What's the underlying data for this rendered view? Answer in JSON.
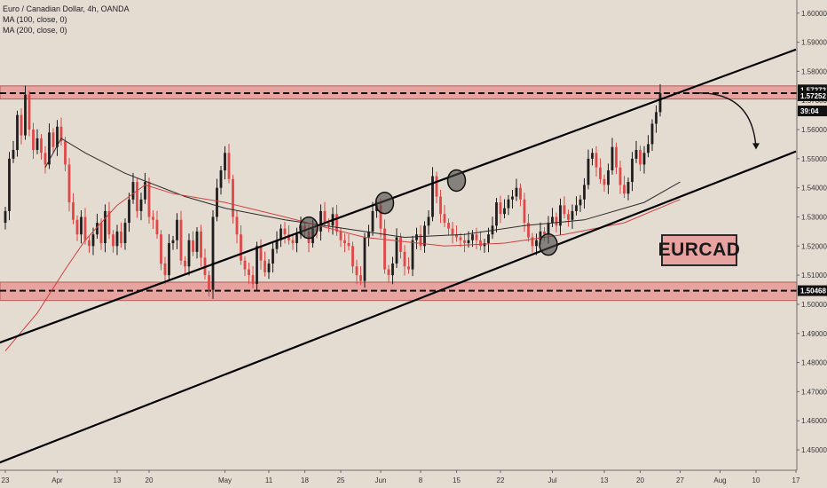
{
  "legend": {
    "title": "Euro / Canadian Dollar, 4h, OANDA",
    "ma100": "MA (100, close, 0)",
    "ma200": "MA (200, close, 0)"
  },
  "symbol_label": "EURCAD",
  "price_tags": [
    {
      "text": "1.57272",
      "value": 1.57272,
      "dark": true
    },
    {
      "text": "1.57252",
      "value": 1.57252,
      "dark": true
    },
    {
      "text": "39:04",
      "value": 1.5664,
      "dark": true
    },
    {
      "text": "1.50468",
      "value": 1.50468,
      "dark": true
    }
  ],
  "colors": {
    "background": "#e4dcd1",
    "bull_candle": "#1e1e1e",
    "bear_candle": "#e04848",
    "zone_fill": "#e6a3a0",
    "ma100": "#2a2a2a",
    "ma200": "#d04040"
  },
  "chart_data": {
    "type": "candlestick",
    "title": "Euro / Canadian Dollar, 4h, OANDA",
    "y_axis": {
      "range": [
        1.443,
        1.6045
      ],
      "ticks": [
        "1.45000",
        "1.46000",
        "1.47000",
        "1.48000",
        "1.49000",
        "1.50000",
        "1.51000",
        "1.52000",
        "1.53000",
        "1.54000",
        "1.55000",
        "1.56000",
        "1.57000",
        "1.58000",
        "1.59000",
        "1.60000"
      ]
    },
    "x_axis": {
      "ticks": [
        {
          "label": "23",
          "bar": 0
        },
        {
          "label": "Apr",
          "bar": 13
        },
        {
          "label": "13",
          "bar": 28
        },
        {
          "label": "20",
          "bar": 36
        },
        {
          "label": "May",
          "bar": 55
        },
        {
          "label": "11",
          "bar": 66
        },
        {
          "label": "18",
          "bar": 75
        },
        {
          "label": "25",
          "bar": 84
        },
        {
          "label": "Jun",
          "bar": 94
        },
        {
          "label": "8",
          "bar": 104
        },
        {
          "label": "15",
          "bar": 113
        },
        {
          "label": "22",
          "bar": 124
        },
        {
          "label": "Jul",
          "bar": 137
        },
        {
          "label": "13",
          "bar": 150
        },
        {
          "label": "20",
          "bar": 159
        },
        {
          "label": "27",
          "bar": 169
        },
        {
          "label": "Aug",
          "bar": 179
        },
        {
          "label": "10",
          "bar": 188
        },
        {
          "label": "17",
          "bar": 198
        }
      ]
    },
    "close_series": [
      1.532,
      1.55,
      1.553,
      1.565,
      1.558,
      1.572,
      1.56,
      1.553,
      1.557,
      1.552,
      1.548,
      1.559,
      1.554,
      1.561,
      1.556,
      1.548,
      1.535,
      1.529,
      1.524,
      1.53,
      1.522,
      1.52,
      1.524,
      1.528,
      1.521,
      1.532,
      1.524,
      1.52,
      1.525,
      1.521,
      1.528,
      1.536,
      1.542,
      1.532,
      1.536,
      1.542,
      1.53,
      1.529,
      1.524,
      1.514,
      1.51,
      1.521,
      1.522,
      1.529,
      1.515,
      1.513,
      1.522,
      1.518,
      1.525,
      1.516,
      1.51,
      1.505,
      1.53,
      1.54,
      1.546,
      1.552,
      1.543,
      1.53,
      1.524,
      1.515,
      1.512,
      1.51,
      1.507,
      1.52,
      1.515,
      1.511,
      1.514,
      1.519,
      1.522,
      1.526,
      1.524,
      1.522,
      1.521,
      1.524,
      1.527,
      1.525,
      1.521,
      1.526,
      1.525,
      1.532,
      1.528,
      1.527,
      1.531,
      1.525,
      1.522,
      1.521,
      1.52,
      1.513,
      1.51,
      1.508,
      1.523,
      1.525,
      1.532,
      1.534,
      1.526,
      1.512,
      1.51,
      1.514,
      1.523,
      1.518,
      1.513,
      1.512,
      1.522,
      1.524,
      1.52,
      1.527,
      1.53,
      1.544,
      1.537,
      1.531,
      1.528,
      1.526,
      1.524,
      1.523,
      1.522,
      1.521,
      1.522,
      1.524,
      1.522,
      1.52,
      1.521,
      1.524,
      1.527,
      1.535,
      1.531,
      1.533,
      1.536,
      1.537,
      1.54,
      1.536,
      1.528,
      1.523,
      1.52,
      1.522,
      1.525,
      1.524,
      1.528,
      1.53,
      1.527,
      1.534,
      1.531,
      1.529,
      1.532,
      1.534,
      1.536,
      1.541,
      1.55,
      1.552,
      1.547,
      1.543,
      1.541,
      1.546,
      1.554,
      1.547,
      1.541,
      1.538,
      1.542,
      1.55,
      1.553,
      1.548,
      1.552,
      1.555,
      1.562,
      1.566,
      1.5725
    ],
    "series": [
      {
        "name": "MA (100, close, 0)",
        "points": [
          [
            10,
            1.547
          ],
          [
            14,
            1.557
          ],
          [
            20,
            1.552
          ],
          [
            30,
            1.545
          ],
          [
            45,
            1.537
          ],
          [
            55,
            1.533
          ],
          [
            70,
            1.529
          ],
          [
            85,
            1.526
          ],
          [
            100,
            1.523
          ],
          [
            115,
            1.524
          ],
          [
            130,
            1.527
          ],
          [
            145,
            1.529
          ],
          [
            160,
            1.535
          ],
          [
            169,
            1.542
          ]
        ]
      },
      {
        "name": "MA (200, close, 0)",
        "points": [
          [
            0,
            1.484
          ],
          [
            8,
            1.497
          ],
          [
            15,
            1.512
          ],
          [
            20,
            1.522
          ],
          [
            28,
            1.534
          ],
          [
            35,
            1.541
          ],
          [
            42,
            1.538
          ],
          [
            55,
            1.535
          ],
          [
            70,
            1.53
          ],
          [
            90,
            1.523
          ],
          [
            110,
            1.52
          ],
          [
            125,
            1.521
          ],
          [
            140,
            1.524
          ],
          [
            155,
            1.528
          ],
          [
            169,
            1.536
          ]
        ]
      }
    ],
    "zones": [
      {
        "from": 1.5705,
        "to": 1.575,
        "level": 1.57252
      },
      {
        "from": 1.5013,
        "to": 1.5076,
        "level": 1.50468
      }
    ],
    "trendlines": [
      {
        "from": [
          -6,
          1.4845
        ],
        "to": [
          198,
          1.5875
        ]
      },
      {
        "from": [
          -6,
          1.4432
        ],
        "to": [
          198,
          1.5525
        ]
      }
    ],
    "touch_points": [
      [
        76,
        1.5263
      ],
      [
        95,
        1.5348
      ],
      [
        113,
        1.5425
      ],
      [
        136,
        1.5205
      ]
    ],
    "arrow": {
      "from": [
        172,
        1.5725
      ],
      "to": [
        188,
        1.5535
      ]
    },
    "grid": false
  }
}
